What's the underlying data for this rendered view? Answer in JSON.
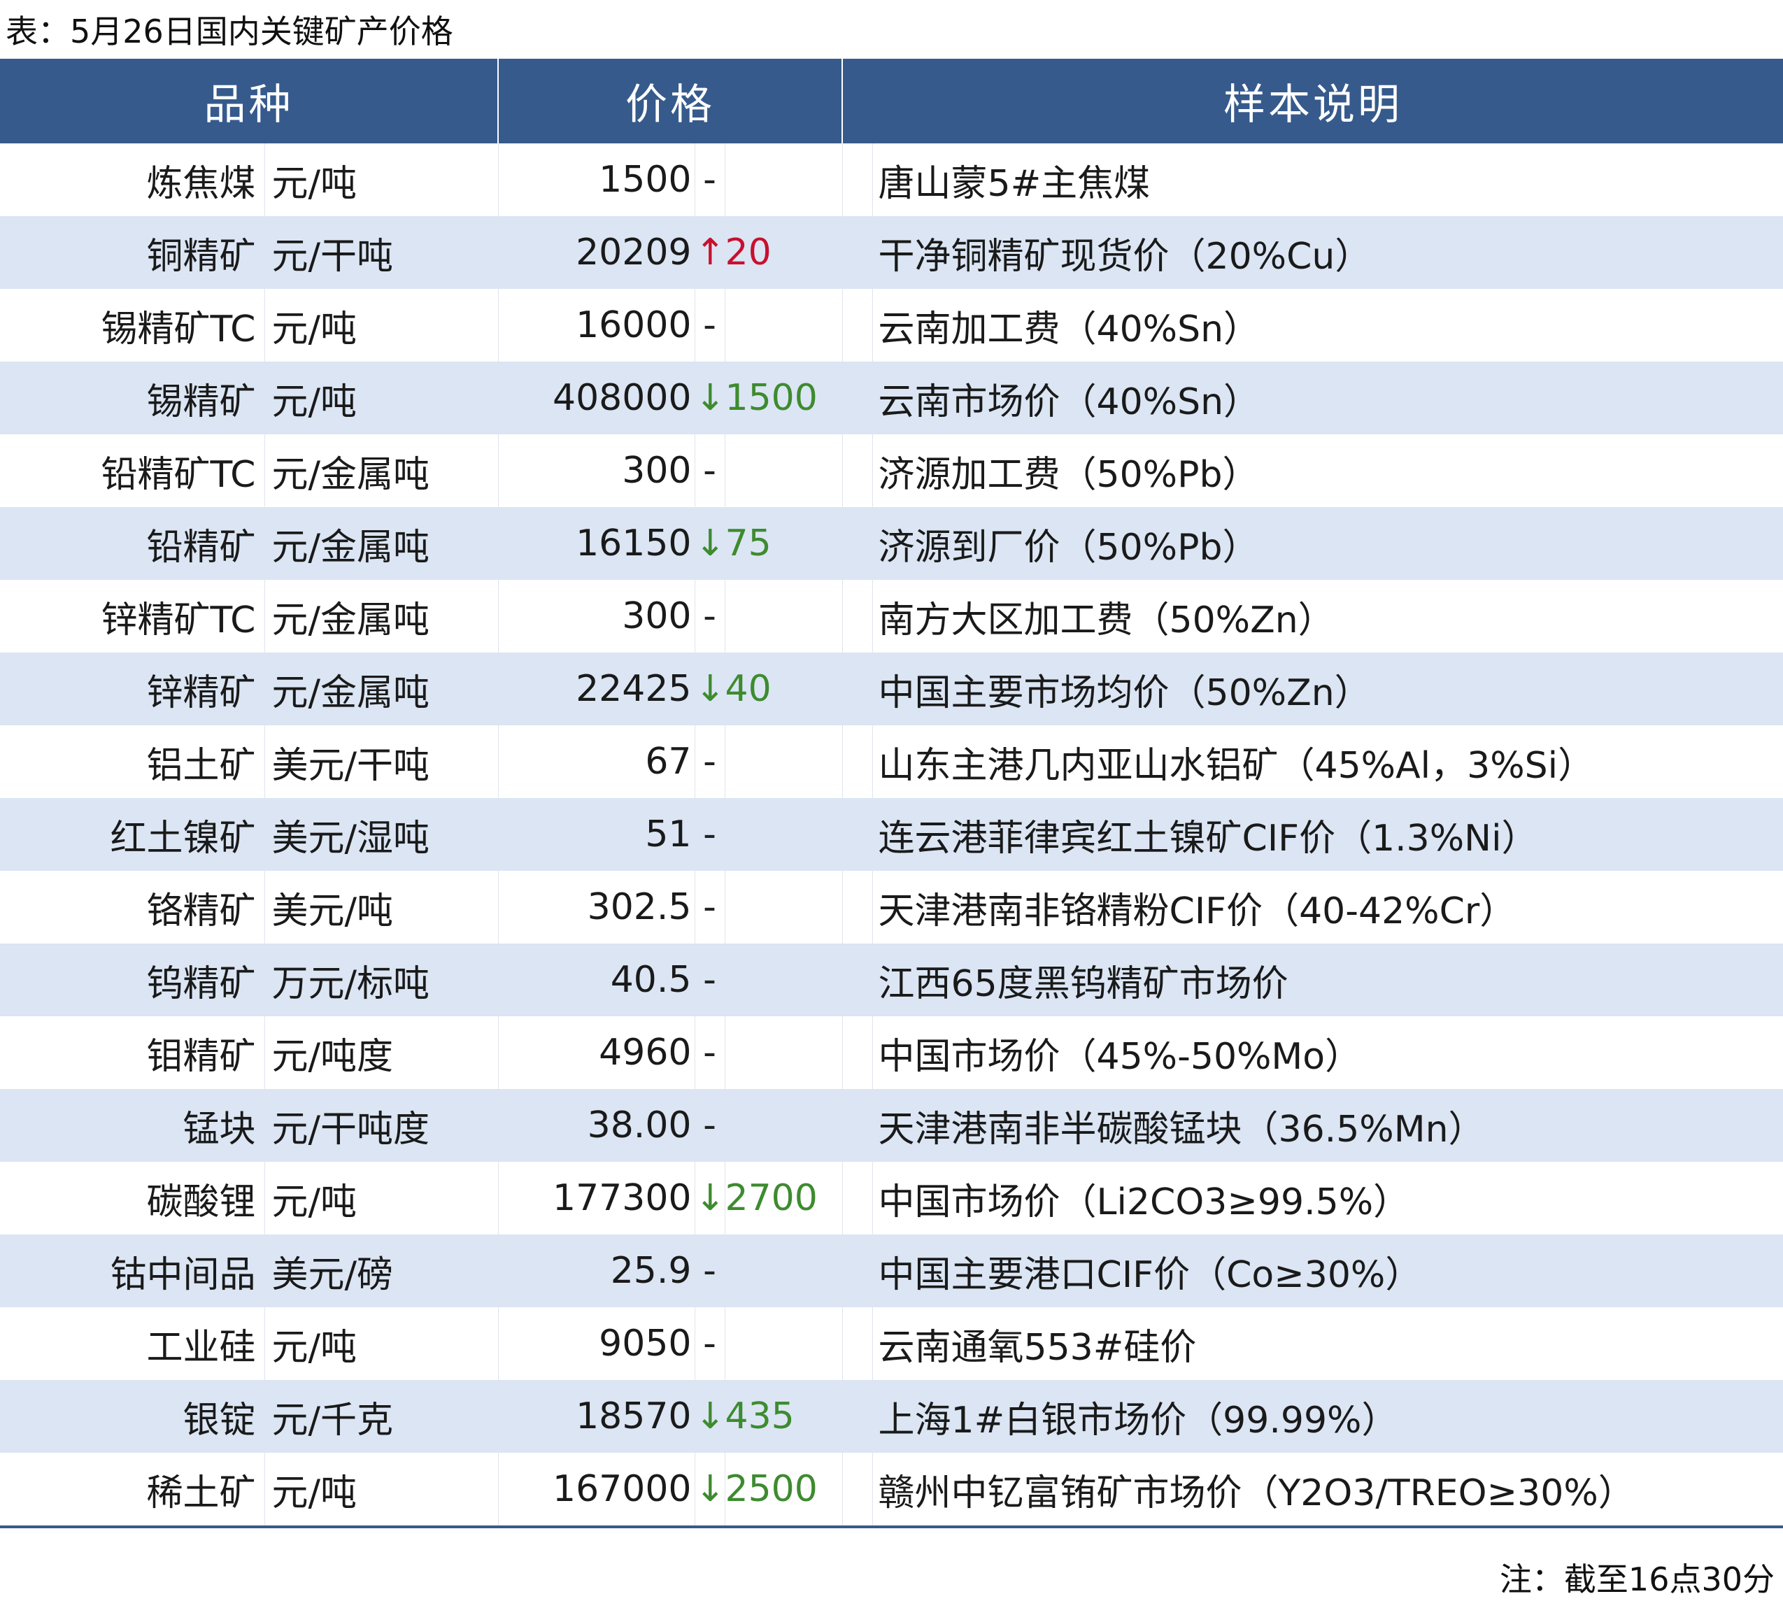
{
  "title": "表：5月26日国内关键矿产价格",
  "header": {
    "col_variety": "品种",
    "col_price": "价格",
    "col_desc": "样本说明"
  },
  "rows": [
    {
      "name": "炼焦煤",
      "unit": "元/吨",
      "value": "1500",
      "arrow": "-",
      "change": "",
      "dir": "flat",
      "desc": "唐山蒙5#主焦煤"
    },
    {
      "name": "铜精矿",
      "unit": "元/干吨",
      "value": "20209",
      "arrow": "↑",
      "change": "20",
      "dir": "up",
      "desc": "干净铜精矿现货价（20%Cu）"
    },
    {
      "name": "锡精矿TC",
      "unit": "元/吨",
      "value": "16000",
      "arrow": "-",
      "change": "",
      "dir": "flat",
      "desc": "云南加工费（40%Sn）"
    },
    {
      "name": "锡精矿",
      "unit": "元/吨",
      "value": "408000",
      "arrow": "↓",
      "change": "1500",
      "dir": "down",
      "desc": "云南市场价（40%Sn）"
    },
    {
      "name": "铅精矿TC",
      "unit": "元/金属吨",
      "value": "300",
      "arrow": "-",
      "change": "",
      "dir": "flat",
      "desc": "济源加工费（50%Pb）"
    },
    {
      "name": "铅精矿",
      "unit": "元/金属吨",
      "value": "16150",
      "arrow": "↓",
      "change": "75",
      "dir": "down",
      "desc": "济源到厂价（50%Pb）"
    },
    {
      "name": "锌精矿TC",
      "unit": "元/金属吨",
      "value": "300",
      "arrow": "-",
      "change": "",
      "dir": "flat",
      "desc": "南方大区加工费（50%Zn）"
    },
    {
      "name": "锌精矿",
      "unit": "元/金属吨",
      "value": "22425",
      "arrow": "↓",
      "change": "40",
      "dir": "down",
      "desc": "中国主要市场均价（50%Zn）"
    },
    {
      "name": "铝土矿",
      "unit": "美元/干吨",
      "value": "67",
      "arrow": "-",
      "change": "",
      "dir": "flat",
      "desc": "山东主港几内亚山水铝矿（45%Al，3%Si）"
    },
    {
      "name": "红土镍矿",
      "unit": "美元/湿吨",
      "value": "51",
      "arrow": "-",
      "change": "",
      "dir": "flat",
      "desc": "连云港菲律宾红土镍矿CIF价（1.3%Ni）"
    },
    {
      "name": "铬精矿",
      "unit": "美元/吨",
      "value": "302.5",
      "arrow": "-",
      "change": "",
      "dir": "flat",
      "desc": "天津港南非铬精粉CIF价（40-42%Cr）"
    },
    {
      "name": "钨精矿",
      "unit": "万元/标吨",
      "value": "40.5",
      "arrow": "-",
      "change": "",
      "dir": "flat",
      "desc": "江西65度黑钨精矿市场价"
    },
    {
      "name": "钼精矿",
      "unit": "元/吨度",
      "value": "4960",
      "arrow": "-",
      "change": "",
      "dir": "flat",
      "desc": "中国市场价（45%-50%Mo）"
    },
    {
      "name": "锰块",
      "unit": "元/干吨度",
      "value": "38.00",
      "arrow": "-",
      "change": "",
      "dir": "flat",
      "desc": "天津港南非半碳酸锰块（36.5%Mn）"
    },
    {
      "name": "碳酸锂",
      "unit": "元/吨",
      "value": "177300",
      "arrow": "↓",
      "change": "2700",
      "dir": "down",
      "desc": "中国市场价（Li2CO3≥99.5%）"
    },
    {
      "name": "钴中间品",
      "unit": "美元/磅",
      "value": "25.9",
      "arrow": "-",
      "change": "",
      "dir": "flat",
      "desc": "中国主要港口CIF价（Co≥30%）"
    },
    {
      "name": "工业硅",
      "unit": "元/吨",
      "value": "9050",
      "arrow": "-",
      "change": "",
      "dir": "flat",
      "desc": "云南通氧553#硅价"
    },
    {
      "name": "银锭",
      "unit": "元/千克",
      "value": "18570",
      "arrow": "↓",
      "change": "435",
      "dir": "down",
      "desc": "上海1#白银市场价（99.99%）"
    },
    {
      "name": "稀土矿",
      "unit": "元/吨",
      "value": "167000",
      "arrow": "↓",
      "change": "2500",
      "dir": "down",
      "desc": "赣州中钇富铕矿市场价（Y2O3/TREO≥30%）"
    }
  ],
  "note": "注：截至16点30分",
  "colors": {
    "header_bg": "#365a8c",
    "stripe_bg": "#dbe5f3",
    "up": "#c8102e",
    "down": "#3d8b2f"
  }
}
